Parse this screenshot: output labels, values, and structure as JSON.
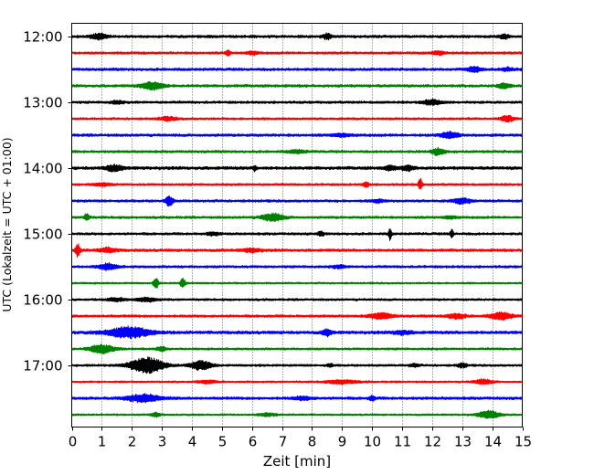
{
  "chart_data": {
    "type": "line",
    "title": "",
    "xlabel": "Zeit  [min]",
    "ylabel": "UTC (Lokalzeit = UTC + 01:00)",
    "xlim": [
      0,
      15
    ],
    "x_ticks": [
      0,
      1,
      2,
      3,
      4,
      5,
      6,
      7,
      8,
      9,
      10,
      11,
      12,
      13,
      14,
      15
    ],
    "y_ticks": [
      "12:00",
      "13:00",
      "14:00",
      "15:00",
      "16:00",
      "17:00"
    ],
    "grid": "vertical-dotted",
    "trace_interval_minutes": 15,
    "start_time": "12:00",
    "colors": [
      "#000000",
      "#ff0000",
      "#0000ff",
      "#008000"
    ],
    "traces": [
      {
        "start": "12:00",
        "base_amplitude": 0.22,
        "events": [
          [
            0.9,
            0.55,
            0.25
          ],
          [
            8.5,
            0.5,
            0.15
          ],
          [
            14.4,
            0.45,
            0.15
          ]
        ]
      },
      {
        "start": "12:15",
        "base_amplitude": 0.2,
        "events": [
          [
            5.2,
            0.5,
            0.08
          ],
          [
            6.0,
            0.3,
            0.2
          ],
          [
            12.2,
            0.4,
            0.2
          ]
        ]
      },
      {
        "start": "12:30",
        "base_amplitude": 0.22,
        "events": [
          [
            13.4,
            0.55,
            0.2
          ],
          [
            14.5,
            0.3,
            0.2
          ]
        ]
      },
      {
        "start": "12:45",
        "base_amplitude": 0.22,
        "events": [
          [
            2.7,
            0.75,
            0.35
          ],
          [
            14.4,
            0.5,
            0.2
          ]
        ]
      },
      {
        "start": "13:00",
        "base_amplitude": 0.2,
        "events": [
          [
            12.0,
            0.5,
            0.3
          ],
          [
            1.5,
            0.3,
            0.2
          ]
        ]
      },
      {
        "start": "13:15",
        "base_amplitude": 0.18,
        "events": [
          [
            3.2,
            0.35,
            0.3
          ],
          [
            14.5,
            0.6,
            0.2
          ]
        ]
      },
      {
        "start": "13:30",
        "base_amplitude": 0.22,
        "events": [
          [
            12.6,
            0.6,
            0.3
          ],
          [
            9.0,
            0.3,
            0.3
          ]
        ]
      },
      {
        "start": "13:45",
        "base_amplitude": 0.2,
        "events": [
          [
            12.2,
            0.7,
            0.2
          ],
          [
            7.5,
            0.3,
            0.3
          ]
        ]
      },
      {
        "start": "14:00",
        "base_amplitude": 0.25,
        "events": [
          [
            1.4,
            0.55,
            0.3
          ],
          [
            6.1,
            0.6,
            0.05
          ],
          [
            11.2,
            0.45,
            0.2
          ],
          [
            10.6,
            0.4,
            0.2
          ]
        ]
      },
      {
        "start": "14:15",
        "base_amplitude": 0.18,
        "events": [
          [
            11.6,
            1.3,
            0.06
          ],
          [
            9.8,
            0.5,
            0.1
          ],
          [
            1.0,
            0.3,
            0.3
          ]
        ]
      },
      {
        "start": "14:30",
        "base_amplitude": 0.2,
        "events": [
          [
            3.25,
            1.0,
            0.12
          ],
          [
            13.0,
            0.5,
            0.3
          ],
          [
            10.2,
            0.3,
            0.2
          ]
        ]
      },
      {
        "start": "14:45",
        "base_amplitude": 0.2,
        "events": [
          [
            0.5,
            0.75,
            0.08
          ],
          [
            6.7,
            0.8,
            0.35
          ],
          [
            12.6,
            0.3,
            0.2
          ]
        ]
      },
      {
        "start": "15:00",
        "base_amplitude": 0.2,
        "events": [
          [
            10.6,
            1.2,
            0.05
          ],
          [
            12.65,
            1.1,
            0.05
          ],
          [
            8.3,
            0.4,
            0.1
          ],
          [
            4.7,
            0.3,
            0.2
          ]
        ]
      },
      {
        "start": "15:15",
        "base_amplitude": 0.22,
        "events": [
          [
            0.2,
            1.3,
            0.08
          ],
          [
            1.2,
            0.4,
            0.3
          ],
          [
            6.0,
            0.35,
            0.3
          ]
        ]
      },
      {
        "start": "15:30",
        "base_amplitude": 0.2,
        "events": [
          [
            1.2,
            0.6,
            0.3
          ],
          [
            8.9,
            0.3,
            0.2
          ]
        ]
      },
      {
        "start": "15:45",
        "base_amplitude": 0.15,
        "events": [
          [
            2.8,
            1.1,
            0.08
          ],
          [
            3.7,
            1.0,
            0.08
          ]
        ]
      },
      {
        "start": "16:00",
        "base_amplitude": 0.18,
        "events": [
          [
            2.5,
            0.35,
            0.35
          ],
          [
            1.5,
            0.3,
            0.3
          ]
        ]
      },
      {
        "start": "16:15",
        "base_amplitude": 0.2,
        "events": [
          [
            10.3,
            0.6,
            0.35
          ],
          [
            12.8,
            0.5,
            0.3
          ],
          [
            14.3,
            0.7,
            0.35
          ]
        ]
      },
      {
        "start": "16:30",
        "base_amplitude": 0.25,
        "events": [
          [
            1.9,
            1.1,
            0.7
          ],
          [
            8.5,
            0.6,
            0.15
          ],
          [
            11.0,
            0.35,
            0.3
          ]
        ]
      },
      {
        "start": "16:45",
        "base_amplitude": 0.18,
        "events": [
          [
            1.0,
            0.85,
            0.4
          ],
          [
            3.0,
            0.4,
            0.15
          ]
        ]
      },
      {
        "start": "17:00",
        "base_amplitude": 0.18,
        "events": [
          [
            2.5,
            1.6,
            0.55
          ],
          [
            4.3,
            0.9,
            0.35
          ],
          [
            13.0,
            0.45,
            0.15
          ],
          [
            11.4,
            0.3,
            0.15
          ],
          [
            8.6,
            0.3,
            0.1
          ]
        ]
      },
      {
        "start": "17:15",
        "base_amplitude": 0.15,
        "events": [
          [
            9.0,
            0.4,
            0.5
          ],
          [
            13.7,
            0.5,
            0.3
          ],
          [
            4.5,
            0.3,
            0.3
          ]
        ]
      },
      {
        "start": "17:30",
        "base_amplitude": 0.22,
        "events": [
          [
            2.4,
            0.75,
            0.55
          ],
          [
            10.0,
            0.45,
            0.1
          ],
          [
            7.7,
            0.3,
            0.3
          ]
        ]
      },
      {
        "start": "17:45",
        "base_amplitude": 0.15,
        "events": [
          [
            2.8,
            0.4,
            0.15
          ],
          [
            13.9,
            0.8,
            0.35
          ],
          [
            6.5,
            0.3,
            0.3
          ]
        ]
      }
    ]
  }
}
